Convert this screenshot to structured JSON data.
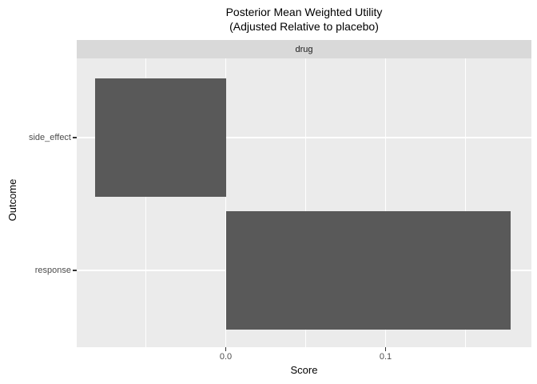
{
  "chart_data": {
    "type": "bar",
    "orientation": "horizontal",
    "title": "Posterior Mean Weighted Utility",
    "subtitle": "(Adjusted Relative to placebo)",
    "facet_label": "drug",
    "categories": [
      "side_effect",
      "response"
    ],
    "values": [
      -0.082,
      0.178
    ],
    "xlabel": "Score",
    "ylabel": "Outcome",
    "x_tick_labels": [
      "0.0",
      "0.1"
    ],
    "x_tick_values": [
      0.0,
      0.1
    ],
    "x_minor_ticks": [
      -0.05,
      0.05,
      0.15
    ],
    "xlim": [
      -0.09325,
      0.19125
    ],
    "legend_position": "none",
    "grid": true,
    "colors": {
      "bar_fill": "#595959",
      "panel_background": "#EBEBEB",
      "strip_background": "#D9D9D9",
      "grid_line": "#FFFFFF",
      "tick_label": "#4D4D4D",
      "axis_tick": "#333333",
      "title_text": "#000000",
      "strip_text": "#1A1A1A"
    }
  }
}
